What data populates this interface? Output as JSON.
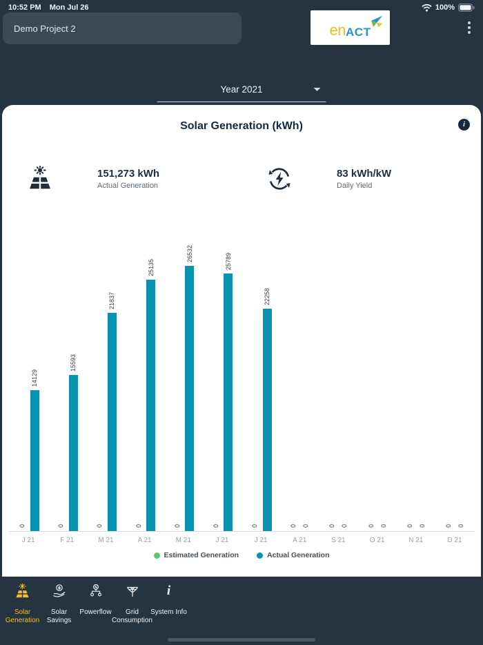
{
  "status_bar": {
    "time": "10:52 PM",
    "date": "Mon Jul 26",
    "battery_percent": "100%"
  },
  "header": {
    "project_name": "Demo Project 2",
    "logo_text_primary": "en",
    "logo_text_secondary": "ACT"
  },
  "filters": {
    "year_selector_value": "Year 2021"
  },
  "card": {
    "title": "Solar Generation (kWh)",
    "stats": [
      {
        "icon": "solar-panel-icon",
        "value": "151,273 kWh",
        "label": "Actual Generation"
      },
      {
        "icon": "energy-cycle-icon",
        "value": "83 kWh/kW",
        "label": "Daily Yield"
      }
    ]
  },
  "chart_data": {
    "type": "bar",
    "categories": [
      "J 21",
      "F 21",
      "M 21",
      "A 21",
      "M 21",
      "J 21",
      "J 21",
      "A 21",
      "S 21",
      "O 21",
      "N 21",
      "D 21"
    ],
    "series": [
      {
        "name": "Estimated Generation",
        "color": "#5ec568",
        "values": [
          0,
          0,
          0,
          0,
          0,
          0,
          0,
          0,
          0,
          0,
          0,
          0
        ]
      },
      {
        "name": "Actual Generation",
        "color": "#0993b0",
        "values": [
          14129,
          15593,
          21837,
          25135,
          26532,
          25789,
          22258,
          0,
          0,
          0,
          0,
          0
        ]
      }
    ],
    "title": "Solar Generation (kWh)",
    "xlabel": "",
    "ylabel": "",
    "ylim": [
      0,
      26532
    ],
    "grid": false,
    "legend_position": "bottom",
    "value_labels": "rotated-90"
  },
  "bottom_nav": {
    "items": [
      {
        "label": "Solar Generation",
        "icon": "solar-generation-icon",
        "active": true
      },
      {
        "label": "Solar Savings",
        "icon": "solar-savings-icon",
        "active": false
      },
      {
        "label": "Powerflow",
        "icon": "powerflow-icon",
        "active": false
      },
      {
        "label": "Grid Consumption",
        "icon": "grid-consumption-icon",
        "active": false
      },
      {
        "label": "System Info",
        "icon": "system-info-icon",
        "active": false
      }
    ]
  },
  "colors": {
    "background": "#263340",
    "card": "#ffffff",
    "accent_teal": "#0993b0",
    "accent_green": "#5ec568",
    "accent_gold": "#f2c022",
    "logo_blue": "#2a93c9",
    "logo_gold": "#e9bf27"
  }
}
